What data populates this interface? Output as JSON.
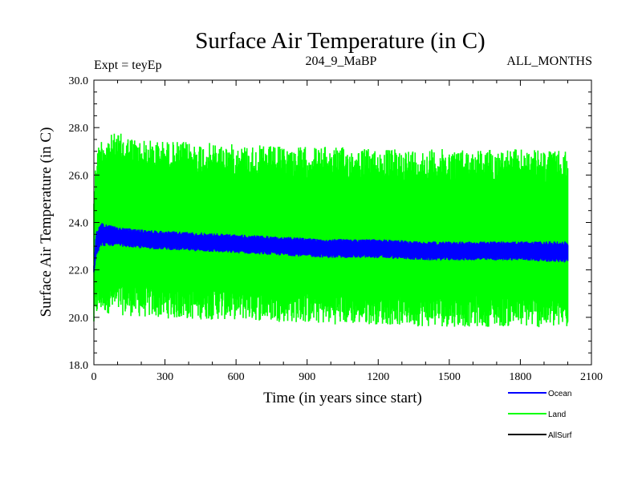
{
  "chart_data": {
    "type": "line",
    "title": "Surface Air Temperature (in C)",
    "subtitle_left": "Expt = teyEp",
    "subtitle_center": "204_9_MaBP",
    "subtitle_right": "ALL_MONTHS",
    "xlabel": "Time (in years since start)",
    "ylabel": "Surface Air Temperature (in C)",
    "xlim": [
      0,
      2100
    ],
    "ylim": [
      18.0,
      30.0
    ],
    "x_ticks": [
      0,
      300,
      600,
      900,
      1200,
      1500,
      1800,
      2100
    ],
    "x_tick_labels": [
      "0",
      "300",
      "600",
      "900",
      "1200",
      "1500",
      "1800",
      "2100"
    ],
    "y_ticks": [
      18,
      20,
      22,
      24,
      26,
      28,
      30
    ],
    "y_tick_labels": [
      "18.0",
      "20.0",
      "22.0",
      "24.0",
      "26.0",
      "28.0",
      "30.0"
    ],
    "series": [
      {
        "name": "Land",
        "color": "#00ff00",
        "x": [
          0,
          10,
          30,
          100,
          200,
          400,
          600,
          800,
          1000,
          1200,
          1400,
          1600,
          1800,
          2000
        ],
        "upper": [
          25.5,
          27.0,
          27.6,
          27.8,
          27.5,
          27.4,
          27.3,
          27.2,
          27.2,
          27.1,
          27.1,
          27.1,
          27.1,
          27.0
        ],
        "lower": [
          19.5,
          20.0,
          20.2,
          20.1,
          20.0,
          19.9,
          19.9,
          19.8,
          19.7,
          19.7,
          19.6,
          19.6,
          19.6,
          19.5
        ]
      },
      {
        "name": "Ocean",
        "color": "#0000ff",
        "x": [
          0,
          10,
          30,
          100,
          200,
          400,
          600,
          800,
          1000,
          1200,
          1400,
          1600,
          1800,
          2000
        ],
        "upper": [
          22.2,
          23.6,
          24.0,
          23.8,
          23.7,
          23.6,
          23.5,
          23.4,
          23.3,
          23.3,
          23.2,
          23.2,
          23.2,
          23.2
        ],
        "lower": [
          21.9,
          22.6,
          23.0,
          23.0,
          22.9,
          22.8,
          22.7,
          22.6,
          22.5,
          22.5,
          22.4,
          22.4,
          22.4,
          22.3
        ]
      },
      {
        "name": "AllSurf",
        "color": "#000000",
        "x": [],
        "values": []
      }
    ],
    "legend": [
      "Ocean",
      "Land",
      "AllSurf"
    ],
    "legend_position": "bottom-right",
    "grid": false
  }
}
